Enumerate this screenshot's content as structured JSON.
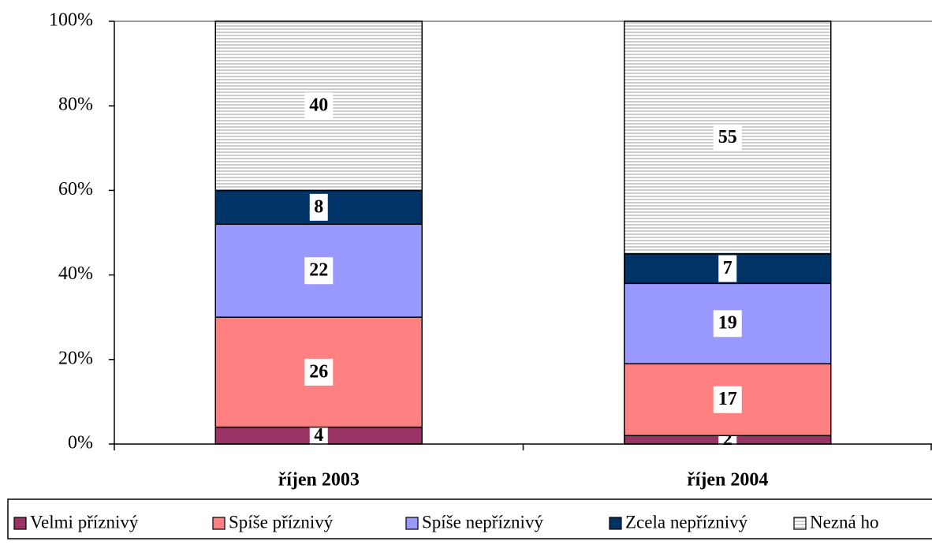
{
  "chart_data": {
    "type": "stacked_bar_100",
    "categories": [
      "říjen 2003",
      "říjen 2004"
    ],
    "series": [
      {
        "name": "Velmi příznivý",
        "color": "#993366",
        "values": [
          4,
          2
        ]
      },
      {
        "name": "Spíše příznivý",
        "color": "#ff8080",
        "values": [
          26,
          17
        ]
      },
      {
        "name": "Spíše nepříznivý",
        "color": "#9999ff",
        "values": [
          22,
          19
        ]
      },
      {
        "name": "Zcela nepříznivý",
        "color": "#003366",
        "values": [
          8,
          7
        ]
      },
      {
        "name": "Nezná ho",
        "color": "#b0b0b0",
        "values": [
          40,
          55
        ],
        "pattern": "horizontal-lines"
      }
    ],
    "ylim": [
      0,
      100
    ],
    "yticks": [
      {
        "value": 0,
        "label": "0%"
      },
      {
        "value": 20,
        "label": "20%"
      },
      {
        "value": 40,
        "label": "40%"
      },
      {
        "value": 60,
        "label": "60%"
      },
      {
        "value": 80,
        "label": "80%"
      },
      {
        "value": 100,
        "label": "100%"
      }
    ],
    "legend": "bottom"
  }
}
